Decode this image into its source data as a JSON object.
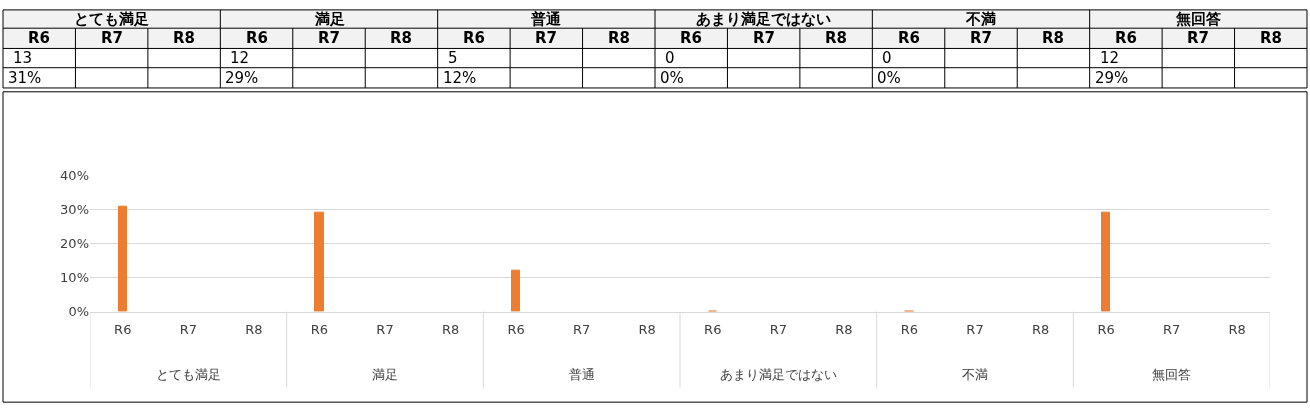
{
  "chart_data": {
    "type": "bar",
    "categories": [
      "R6",
      "R7",
      "R8",
      "R6",
      "R7",
      "R8",
      "R6",
      "R7",
      "R8",
      "R6",
      "R7",
      "R8",
      "R6",
      "R7",
      "R8",
      "R6",
      "R7",
      "R8"
    ],
    "values": [
      31,
      null,
      null,
      29,
      null,
      null,
      12,
      null,
      null,
      0,
      null,
      null,
      0,
      null,
      null,
      29,
      null,
      null
    ],
    "annotations": [
      "とても満足",
      "満足",
      "普通",
      "あまり満足ではない",
      "不満",
      "無回答",
      "13",
      "12",
      "5",
      "0",
      "0",
      "12",
      "31%",
      "29%",
      "12%",
      "0%",
      "0%",
      "29%"
    ],
    "color": "#ed7d31",
    "ylim": [
      0,
      40
    ],
    "yticks": [
      {
        "value": 0,
        "label": "0%"
      },
      {
        "value": 10,
        "label": "10%"
      },
      {
        "value": 20,
        "label": "20%"
      },
      {
        "value": 30,
        "label": "30%"
      },
      {
        "value": 40,
        "label": "40%"
      }
    ],
    "grid": "y",
    "legend": false
  }
}
